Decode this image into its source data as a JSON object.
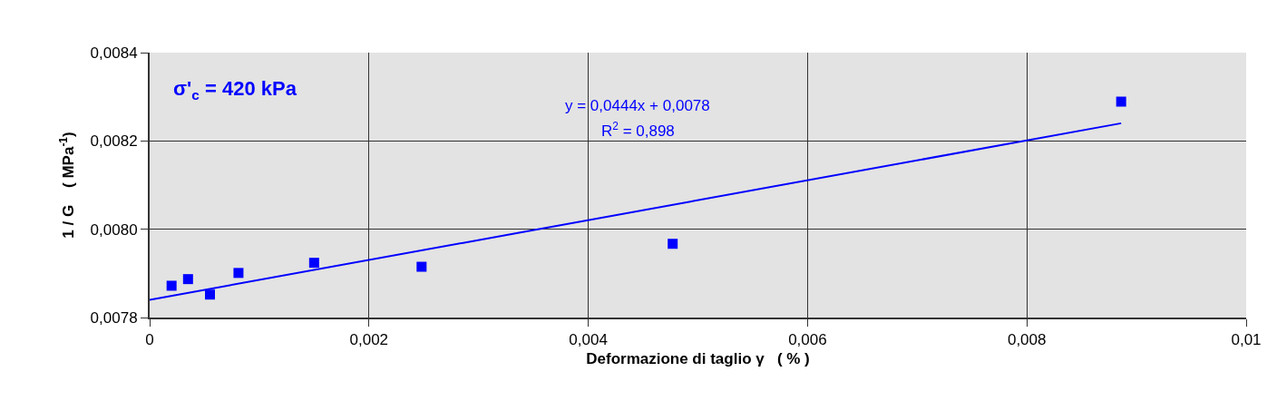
{
  "chart_data": {
    "type": "scatter",
    "xlabel": "Deformazione di taglio γ   ( % )",
    "ylabel": "1 / G    ( MPa$^{-1}$)",
    "series": [
      {
        "color": "#0000ff",
        "marker": "square",
        "x": [
          0.0002,
          0.00035,
          0.00055,
          0.00081,
          0.0015,
          0.00248,
          0.00477,
          0.00886
        ],
        "values": [
          0.007872,
          0.007887,
          0.007852,
          0.007901,
          0.007924,
          0.007915,
          0.007967,
          0.008289
        ]
      },
      {
        "type": "line",
        "color": "#0000ff",
        "marker": "none",
        "x": [
          0,
          0.00886
        ],
        "values": [
          0.00784,
          0.00824
        ]
      }
    ],
    "annotations": [
      "σ'$_{c}$ = 420 kPa",
      "y = 0,0444x + 0,0078",
      "R$^{2}$ = 0,898"
    ],
    "xlim": [
      0,
      0.01
    ],
    "ylim": [
      0.0078,
      0.0084
    ],
    "xticks": [
      {
        "value": 0,
        "label": "0"
      },
      {
        "value": 0.002,
        "label": "0,002"
      },
      {
        "value": 0.004,
        "label": "0,004"
      },
      {
        "value": 0.006,
        "label": "0,006"
      },
      {
        "value": 0.008,
        "label": "0,008"
      },
      {
        "value": 0.01,
        "label": "0,01"
      }
    ],
    "yticks": [
      {
        "value": 0.0078,
        "label": "0,0078"
      },
      {
        "value": 0.008,
        "label": "0,0080"
      },
      {
        "value": 0.0082,
        "label": "0,0082"
      },
      {
        "value": 0.0084,
        "label": "0,0084"
      }
    ],
    "grid": true
  }
}
